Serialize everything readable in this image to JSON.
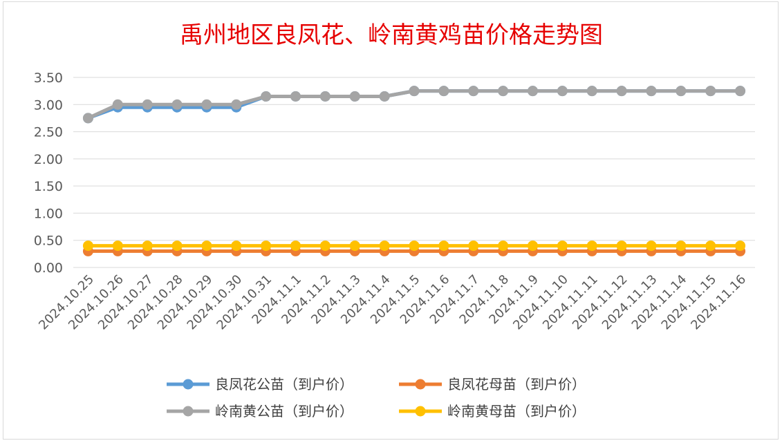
{
  "chart_data": {
    "type": "line",
    "title": "禹州地区良凤花、岭南黄鸡苗价格走势图",
    "xlabel": "",
    "ylabel": "",
    "ylim": [
      0,
      3.5
    ],
    "yticks": [
      "0.00",
      "0.50",
      "1.00",
      "1.50",
      "2.00",
      "2.50",
      "3.00",
      "3.50"
    ],
    "grid": true,
    "legend_position": "bottom",
    "x": [
      "2024.10.25",
      "2024.10.26",
      "2024.10.27",
      "2024.10.28",
      "2024.10.29",
      "2024.10.30",
      "2024.10.31",
      "2024.11.1",
      "2024.11.2",
      "2024.11.3",
      "2024.11.4",
      "2024.11.5",
      "2024.11.6",
      "2024.11.7",
      "2024.11.8",
      "2024.11.9",
      "2024.11.10",
      "2024.11.11",
      "2024.11.12",
      "2024.11.13",
      "2024.11.14",
      "2024.11.15",
      "2024.11.16"
    ],
    "series": [
      {
        "name": "良凤花公苗（到户价）",
        "color": "#5b9bd5",
        "values": [
          2.75,
          2.95,
          2.95,
          2.95,
          2.95,
          2.95,
          3.15,
          3.15,
          3.15,
          3.15,
          3.15,
          3.25,
          3.25,
          3.25,
          3.25,
          3.25,
          3.25,
          3.25,
          3.25,
          3.25,
          3.25,
          3.25,
          3.25
        ]
      },
      {
        "name": "良凤花母苗（到户价）",
        "color": "#ed7d31",
        "values": [
          0.3,
          0.3,
          0.3,
          0.3,
          0.3,
          0.3,
          0.3,
          0.3,
          0.3,
          0.3,
          0.3,
          0.3,
          0.3,
          0.3,
          0.3,
          0.3,
          0.3,
          0.3,
          0.3,
          0.3,
          0.3,
          0.3,
          0.3
        ]
      },
      {
        "name": "岭南黄公苗（到户价）",
        "color": "#a5a5a5",
        "values": [
          2.75,
          3.0,
          3.0,
          3.0,
          3.0,
          3.0,
          3.15,
          3.15,
          3.15,
          3.15,
          3.15,
          3.25,
          3.25,
          3.25,
          3.25,
          3.25,
          3.25,
          3.25,
          3.25,
          3.25,
          3.25,
          3.25,
          3.25
        ]
      },
      {
        "name": "岭南黄母苗（到户价）",
        "color": "#ffc000",
        "values": [
          0.4,
          0.4,
          0.4,
          0.4,
          0.4,
          0.4,
          0.4,
          0.4,
          0.4,
          0.4,
          0.4,
          0.4,
          0.4,
          0.4,
          0.4,
          0.4,
          0.4,
          0.4,
          0.4,
          0.4,
          0.4,
          0.4,
          0.4
        ]
      }
    ]
  }
}
